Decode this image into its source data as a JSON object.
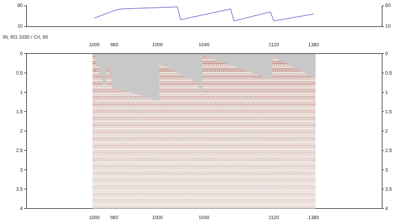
{
  "chart_data": [
    {
      "type": "line",
      "categories": [
        null,
        null,
        null,
        null,
        null,
        null,
        null,
        null,
        null,
        null,
        null,
        null,
        null,
        null,
        null,
        null,
        null,
        null,
        null,
        null,
        "1000",
        null,
        null,
        null,
        null,
        null,
        "960",
        null,
        null,
        null,
        null,
        null,
        null,
        null,
        null,
        null,
        null,
        null,
        null,
        "1000",
        null,
        null,
        null,
        null,
        null,
        null,
        null,
        null,
        null,
        null,
        null,
        null,
        null,
        "1040",
        null,
        null,
        null,
        null,
        null,
        null,
        null,
        null,
        null,
        null,
        null,
        null,
        null,
        null,
        null,
        null,
        null,
        null,
        null,
        null,
        "1120",
        null,
        null,
        null,
        null,
        null,
        null,
        null,
        null,
        null,
        null,
        null,
        "1380",
        null,
        null,
        null,
        null,
        null,
        null,
        null,
        null,
        null,
        null,
        null,
        null,
        null,
        null,
        null,
        null,
        null,
        null,
        null,
        null
      ],
      "values": [
        null,
        null,
        null,
        null,
        null,
        null,
        null,
        null,
        null,
        null,
        null,
        null,
        null,
        null,
        null,
        null,
        null,
        null,
        null,
        null,
        30,
        33,
        36,
        39,
        42,
        45,
        48,
        50,
        52,
        52.3,
        52.6,
        52.9,
        53.2,
        53.5,
        53.8,
        54.1,
        54.4,
        54.7,
        55,
        55.3,
        55.6,
        55.9,
        56.2,
        56.5,
        56.8,
        57,
        26,
        27.7,
        29.5,
        31.2,
        32.9,
        34.7,
        36.4,
        38.1,
        39.9,
        41.6,
        43.3,
        45.1,
        46.8,
        48.5,
        50.3,
        52,
        23,
        25,
        27,
        29,
        31,
        33,
        35,
        37,
        39,
        41,
        43,
        45,
        23,
        24.4,
        25.8,
        27.2,
        28.6,
        30,
        31.4,
        32.8,
        34.2,
        35.6,
        37,
        38.4,
        40,
        null,
        null,
        null,
        null,
        null,
        null,
        null,
        null,
        null,
        null,
        null,
        null,
        null,
        null,
        null,
        null,
        null,
        null,
        null,
        null
      ],
      "ylim": [
        10,
        60
      ],
      "yticks": [
        10,
        60
      ],
      "color": "#6464c8",
      "tick_labels": "y"
    },
    {
      "type": "bar",
      "title": "IN, RG 1030 / Crl, 90",
      "categories": [
        null,
        null,
        null,
        null,
        null,
        null,
        null,
        null,
        null,
        null,
        null,
        null,
        null,
        null,
        null,
        null,
        null,
        null,
        null,
        null,
        "1000",
        null,
        null,
        null,
        null,
        null,
        "960",
        null,
        null,
        null,
        null,
        null,
        null,
        null,
        null,
        null,
        null,
        null,
        null,
        "1000",
        null,
        null,
        null,
        null,
        null,
        null,
        null,
        null,
        null,
        null,
        null,
        null,
        null,
        "1040",
        null,
        null,
        null,
        null,
        null,
        null,
        null,
        null,
        null,
        null,
        null,
        null,
        null,
        null,
        null,
        null,
        null,
        null,
        null,
        null,
        "1120",
        null,
        null,
        null,
        null,
        null,
        null,
        null,
        null,
        null,
        null,
        null,
        "1380",
        null,
        null,
        null,
        null,
        null,
        null,
        null,
        null,
        null,
        null,
        null,
        null,
        null,
        null,
        null,
        null,
        null,
        null,
        null,
        null
      ],
      "values": [
        null,
        null,
        null,
        null,
        null,
        null,
        null,
        null,
        null,
        null,
        null,
        null,
        null,
        null,
        null,
        null,
        null,
        null,
        null,
        null,
        0.05,
        0.3,
        0.55,
        0.8,
        0.35,
        0.6,
        0.9,
        0.9,
        0.92,
        0.95,
        0.97,
        1.0,
        1.02,
        1.05,
        1.07,
        1.1,
        1.12,
        1.15,
        1.18,
        1.2,
        0.25,
        0.3,
        0.34,
        0.39,
        0.43,
        0.48,
        0.52,
        0.57,
        0.61,
        0.66,
        0.7,
        0.75,
        1.0,
        0.05,
        0.08,
        0.11,
        0.14,
        0.17,
        0.2,
        0.23,
        0.26,
        0.29,
        0.32,
        0.35,
        0.38,
        0.41,
        0.44,
        0.47,
        0.5,
        0.53,
        0.56,
        0.59,
        0.62,
        0.65,
        0.08,
        0.12,
        0.17,
        0.21,
        0.25,
        0.3,
        0.34,
        0.38,
        0.43,
        0.47,
        0.51,
        0.56,
        0.6,
        null,
        null,
        null,
        null,
        null,
        null,
        null,
        null,
        null,
        null,
        null,
        null,
        null,
        null,
        null,
        null,
        null,
        null,
        null,
        null
      ],
      "ylim": [
        4,
        0
      ],
      "yticks": [
        0,
        0.5,
        1,
        1.5,
        2,
        2.5,
        3,
        3.5,
        4
      ],
      "color": "#8b2a1e"
    }
  ]
}
